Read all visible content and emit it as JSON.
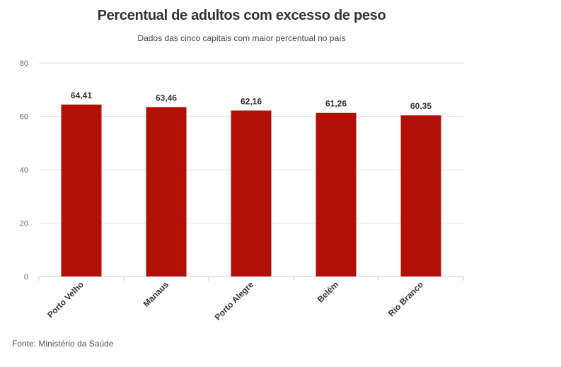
{
  "chart_data": {
    "type": "bar",
    "title": "Percentual de adultos com excesso de peso",
    "subtitle": "Dados das cinco capitais com maior percentual no país",
    "categories": [
      "Porto Velho",
      "Manaus",
      "Porto Alegre",
      "Belém",
      "Rio Branco"
    ],
    "values": [
      64.41,
      63.46,
      62.16,
      61.26,
      60.35
    ],
    "value_labels": [
      "64,41",
      "63,46",
      "62,16",
      "61,26",
      "60,35"
    ],
    "yticks": [
      "0",
      "20",
      "40",
      "60",
      "80"
    ],
    "ylim": [
      0,
      80
    ],
    "grid": true,
    "legend": "none",
    "bar_color": "#b21005",
    "source": "Fonte: Ministério da Saúde"
  }
}
